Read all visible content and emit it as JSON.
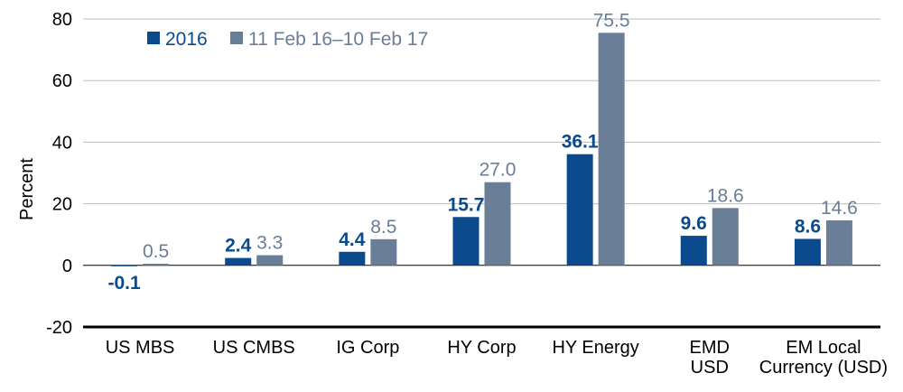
{
  "chart_data": {
    "type": "bar",
    "ylabel": "Percent",
    "xlabel": "",
    "title": "",
    "ylim": [
      -20,
      80
    ],
    "yticks": [
      -20,
      0,
      20,
      40,
      60,
      80
    ],
    "grid": "horizontal",
    "legend_position": "top-left",
    "categories": [
      [
        "US MBS"
      ],
      [
        "US CMBS"
      ],
      [
        "IG Corp"
      ],
      [
        "HY Corp"
      ],
      [
        "HY Energy"
      ],
      [
        "EMD",
        "USD"
      ],
      [
        "EM Local",
        "Currency (USD)"
      ]
    ],
    "series": [
      {
        "name": "2016",
        "color": "#0b4a8c",
        "label_color": "#0b4a8c",
        "values": [
          -0.1,
          2.4,
          4.4,
          15.7,
          36.1,
          9.6,
          8.6
        ],
        "labels": [
          "-0.1",
          "2.4",
          "4.4",
          "15.7",
          "36.1",
          "9.6",
          "8.6"
        ]
      },
      {
        "name": "11 Feb 16–10 Feb 17",
        "color": "#6a7e97",
        "label_color": "#6a7e97",
        "values": [
          0.5,
          3.3,
          8.5,
          27.0,
          75.5,
          18.6,
          14.6
        ],
        "labels": [
          "0.5",
          "3.3",
          "8.5",
          "27.0",
          "75.5",
          "18.6",
          "14.6"
        ]
      }
    ]
  }
}
